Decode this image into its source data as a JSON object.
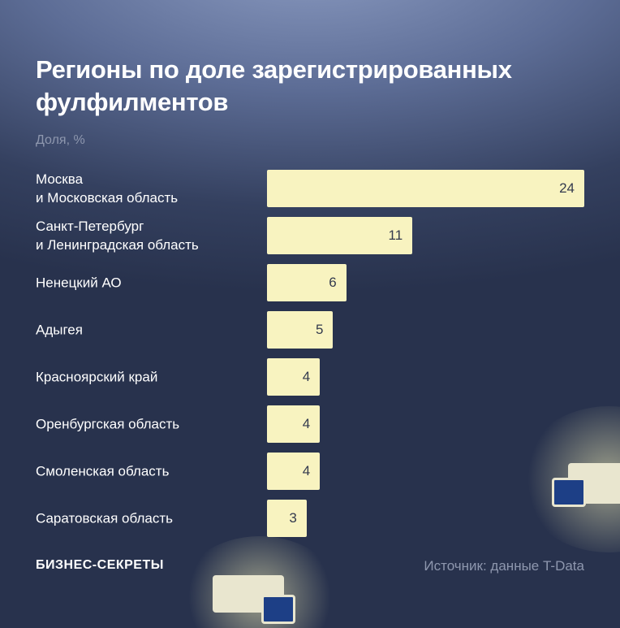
{
  "title": "Регионы по доле зарегистрированных фулфилментов",
  "subtitle": "Доля, %",
  "brand": "БИЗНЕС-СЕКРЕТЫ",
  "source": "Источник: данные T-Data",
  "chart_data": {
    "type": "bar",
    "orientation": "horizontal",
    "color": "#f8f3c0",
    "categories": [
      "Москва\nи Московская область",
      "Санкт-Петербург\nи Ленинградская область",
      "Ненецкий АО",
      "Адыгея",
      "Красноярский край",
      "Оренбургская область",
      "Смоленская область",
      "Саратовская область"
    ],
    "values": [
      24,
      11,
      6,
      5,
      4,
      4,
      4,
      3
    ]
  }
}
